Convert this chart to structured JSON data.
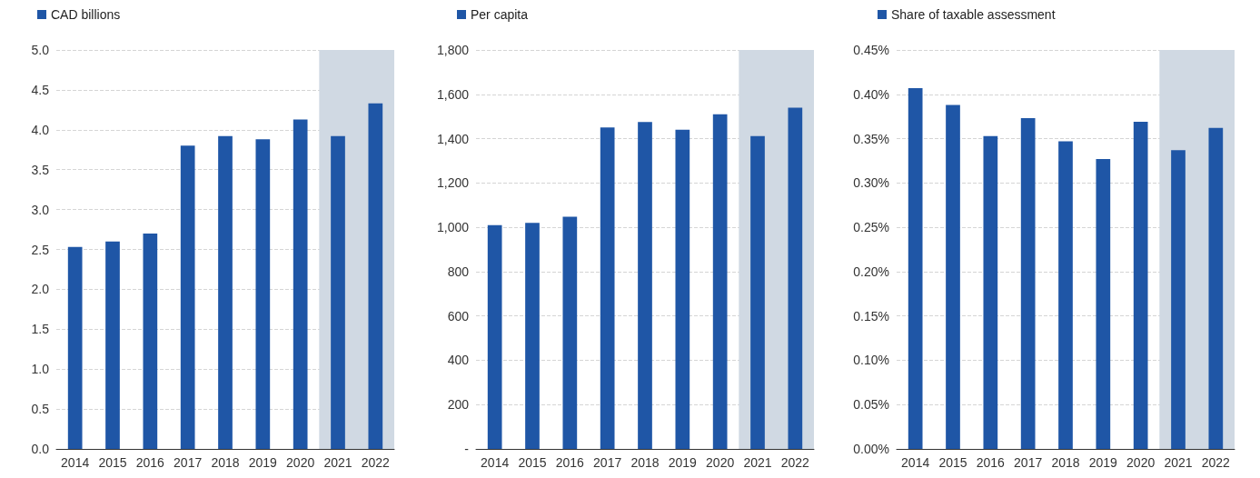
{
  "chart_data": [
    {
      "type": "bar",
      "categories": [
        "2014",
        "2015",
        "2016",
        "2017",
        "2018",
        "2019",
        "2020",
        "2021",
        "2022"
      ],
      "series": [
        {
          "name": "CAD billions",
          "color": "#1f56a6",
          "values": [
            2.53,
            2.6,
            2.7,
            3.8,
            3.92,
            3.88,
            4.13,
            3.92,
            4.33
          ]
        }
      ],
      "ylim": [
        0,
        5
      ],
      "yticks": [
        {
          "value": 0,
          "label": "0.0"
        },
        {
          "value": 0.5,
          "label": "0.5"
        },
        {
          "value": 1,
          "label": "1.0"
        },
        {
          "value": 1.5,
          "label": "1.5"
        },
        {
          "value": 2,
          "label": "2.0"
        },
        {
          "value": 2.5,
          "label": "2.5"
        },
        {
          "value": 3,
          "label": "3.0"
        },
        {
          "value": 3.5,
          "label": "3.5"
        },
        {
          "value": 4,
          "label": "4.0"
        },
        {
          "value": 4.5,
          "label": "4.5"
        },
        {
          "value": 5,
          "label": "5.0"
        }
      ],
      "grid": "y",
      "legend": "top left",
      "bands": [
        {
          "axis": "x",
          "from": "2021",
          "to": "2022",
          "color": "#d0d9e3"
        }
      ]
    },
    {
      "type": "bar",
      "categories": [
        "2014",
        "2015",
        "2016",
        "2017",
        "2018",
        "2019",
        "2020",
        "2021",
        "2022"
      ],
      "series": [
        {
          "name": "Per capita",
          "color": "#1f56a6",
          "values": [
            1010,
            1020,
            1048,
            1450,
            1475,
            1440,
            1510,
            1412,
            1540
          ]
        }
      ],
      "ylim": [
        0,
        1800
      ],
      "yticks": [
        {
          "value": 0,
          "label": "-"
        },
        200,
        400,
        600,
        800,
        {
          "value": 1000,
          "label": "1,000"
        },
        {
          "value": 1200,
          "label": "1,200"
        },
        {
          "value": 1400,
          "label": "1,400"
        },
        {
          "value": 1600,
          "label": "1,600"
        },
        {
          "value": 1800,
          "label": "1,800"
        }
      ],
      "grid": "y",
      "legend": "top left",
      "bands": [
        {
          "axis": "x",
          "from": "2021",
          "to": "2022",
          "color": "#d0d9e3"
        }
      ]
    },
    {
      "type": "bar",
      "categories": [
        "2014",
        "2015",
        "2016",
        "2017",
        "2018",
        "2019",
        "2020",
        "2021",
        "2022"
      ],
      "series": [
        {
          "name": "Share of taxable assessment",
          "color": "#1f56a6",
          "values": [
            0.407,
            0.388,
            0.353,
            0.373,
            0.347,
            0.327,
            0.369,
            0.337,
            0.362
          ]
        }
      ],
      "ylim": [
        0,
        0.45
      ],
      "yticks": [
        {
          "value": 0,
          "label": "0.00%"
        },
        {
          "value": 0.05,
          "label": "0.05%"
        },
        {
          "value": 0.1,
          "label": "0.10%"
        },
        {
          "value": 0.15,
          "label": "0.15%"
        },
        {
          "value": 0.2,
          "label": "0.20%"
        },
        {
          "value": 0.25,
          "label": "0.25%"
        },
        {
          "value": 0.3,
          "label": "0.30%"
        },
        {
          "value": 0.35,
          "label": "0.35%"
        },
        {
          "value": 0.4,
          "label": "0.40%"
        },
        {
          "value": 0.45,
          "label": "0.45%"
        }
      ],
      "grid": "y",
      "legend": "top left",
      "bands": [
        {
          "axis": "x",
          "from": "2021",
          "to": "2022",
          "color": "#d0d9e3"
        }
      ]
    }
  ]
}
